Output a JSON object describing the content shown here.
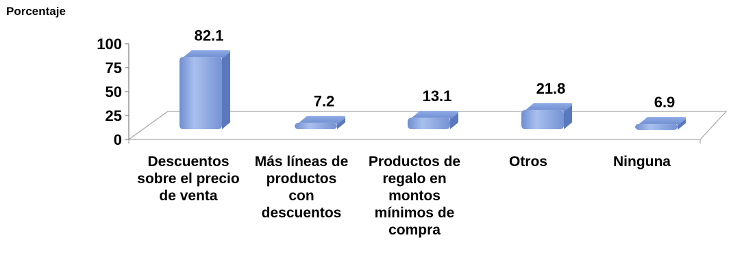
{
  "chart_data": {
    "type": "bar",
    "title": "",
    "ylabel": "Porcentaje",
    "xlabel": "",
    "ylim": [
      0,
      100
    ],
    "yticks": [
      0,
      25,
      50,
      75,
      100
    ],
    "categories": [
      "Descuentos sobre el precio de venta",
      "Más líneas de productos con descuentos",
      "Productos de regalo en montos mínimos de compra",
      "Otros",
      "Ninguna"
    ],
    "values": [
      82.1,
      7.2,
      13.1,
      21.8,
      6.9
    ],
    "style": "3d",
    "bar_color": "#7f9fdb"
  }
}
